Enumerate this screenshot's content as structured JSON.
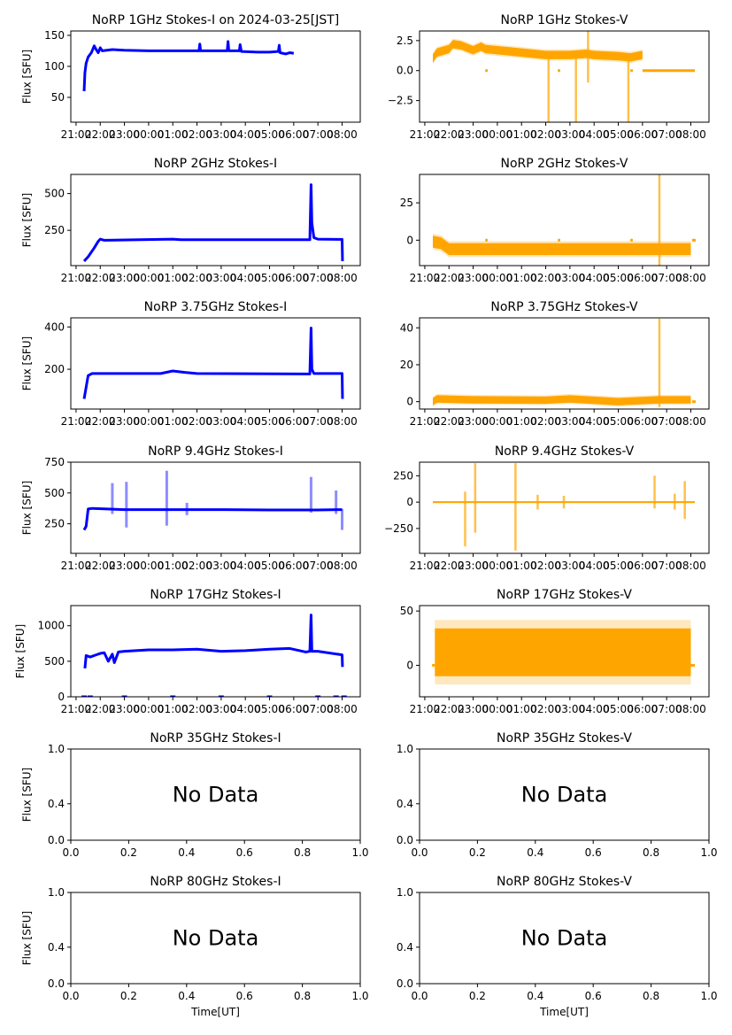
{
  "chart_data": {
    "type": "multi-panel",
    "colors": {
      "stokes_i": "#0000ff",
      "stokes_v": "#ffa500",
      "axes": "#000000"
    },
    "time_ticks": [
      "21:00",
      "22:00",
      "23:00",
      "00:00",
      "01:00",
      "02:00",
      "03:00",
      "04:00",
      "05:00",
      "06:00",
      "07:00",
      "08:00"
    ],
    "xlim": [
      "20:47",
      "08:45"
    ],
    "unit_ticks": [
      "0.0",
      "0.2",
      "0.4",
      "0.6",
      "0.8",
      "1.0"
    ],
    "panels": [
      {
        "title": "NoRP 1GHz Stokes-I on 2024-03-25[JST]",
        "ylabel": "Flux [SFU]",
        "kind": "I",
        "ylim": [
          10,
          157
        ],
        "yticks": [
          50,
          100,
          150
        ],
        "series": [
          [
            "21:20",
            60
          ],
          [
            "21:22",
            90
          ],
          [
            "21:25",
            105
          ],
          [
            "21:30",
            115
          ],
          [
            "21:38",
            122
          ],
          [
            "21:45",
            133
          ],
          [
            "21:50",
            127
          ],
          [
            "21:55",
            122
          ],
          [
            "22:00",
            130
          ],
          [
            "22:05",
            125
          ],
          [
            "22:30",
            127
          ],
          [
            "23:00",
            126
          ],
          [
            "00:00",
            125
          ],
          [
            "01:00",
            125
          ],
          [
            "02:05",
            125
          ],
          [
            "02:07",
            136
          ],
          [
            "02:09",
            125
          ],
          [
            "03:15",
            125
          ],
          [
            "03:17",
            140
          ],
          [
            "03:19",
            125
          ],
          [
            "03:45",
            125
          ],
          [
            "03:47",
            135
          ],
          [
            "03:50",
            124
          ],
          [
            "04:30",
            123
          ],
          [
            "05:00",
            123
          ],
          [
            "05:22",
            124
          ],
          [
            "05:24",
            134
          ],
          [
            "05:26",
            122
          ],
          [
            "05:40",
            120
          ],
          [
            "05:50",
            122
          ],
          [
            "06:00",
            121
          ]
        ]
      },
      {
        "title": "NoRP 1GHz Stokes-V",
        "kind": "V",
        "ylim": [
          -4.3,
          3.3
        ],
        "yticks": [
          -2.5,
          0.0,
          2.5
        ],
        "ytick_labels": [
          "−2.5",
          "0.0",
          "2.5"
        ],
        "spread": 0.35,
        "series": [
          [
            "21:20",
            1.0
          ],
          [
            "21:30",
            1.5
          ],
          [
            "22:00",
            1.8
          ],
          [
            "22:10",
            2.2
          ],
          [
            "22:30",
            2.1
          ],
          [
            "23:00",
            1.7
          ],
          [
            "23:20",
            2.0
          ],
          [
            "23:30",
            1.8
          ],
          [
            "00:00",
            1.7
          ],
          [
            "00:30",
            1.6
          ],
          [
            "01:00",
            1.5
          ],
          [
            "01:30",
            1.4
          ],
          [
            "02:00",
            1.3
          ],
          [
            "03:00",
            1.3
          ],
          [
            "03:40",
            1.4
          ],
          [
            "04:00",
            1.3
          ],
          [
            "05:00",
            1.2
          ],
          [
            "05:30",
            1.1
          ],
          [
            "06:00",
            1.3
          ]
        ],
        "zero_segments": [
          [
            "23:30",
            "23:36"
          ],
          [
            "02:30",
            "02:36"
          ],
          [
            "05:30",
            "05:36"
          ],
          [
            "06:00",
            "08:10"
          ]
        ],
        "spikes": [
          [
            "02:07",
            -4.3,
            1.0
          ],
          [
            "03:15",
            -4.3,
            1.0
          ],
          [
            "03:45",
            -1.0,
            3.3
          ],
          [
            "05:25",
            -4.3,
            1.0
          ]
        ]
      },
      {
        "title": "NoRP 2GHz Stokes-I",
        "ylabel": "Flux [SFU]",
        "kind": "I",
        "ylim": [
          10,
          630
        ],
        "yticks": [
          250,
          500
        ],
        "series": [
          [
            "21:20",
            40
          ],
          [
            "21:30",
            70
          ],
          [
            "21:45",
            130
          ],
          [
            "21:55",
            175
          ],
          [
            "22:00",
            190
          ],
          [
            "22:10",
            182
          ],
          [
            "01:00",
            190
          ],
          [
            "01:20",
            186
          ],
          [
            "06:40",
            186
          ],
          [
            "06:43",
            560
          ],
          [
            "06:45",
            300
          ],
          [
            "06:50",
            200
          ],
          [
            "07:00",
            190
          ],
          [
            "08:00",
            188
          ],
          [
            "08:01",
            40
          ]
        ]
      },
      {
        "title": "NoRP 2GHz Stokes-V",
        "kind": "V",
        "ylim": [
          -17,
          44
        ],
        "yticks": [
          0,
          25
        ],
        "spread": 4,
        "series": [
          [
            "21:20",
            -1
          ],
          [
            "21:40",
            -2
          ],
          [
            "22:00",
            -6
          ],
          [
            "06:40",
            -6
          ],
          [
            "08:00",
            -6
          ]
        ],
        "zero_segments": [
          [
            "23:30",
            "23:36"
          ],
          [
            "02:30",
            "02:36"
          ],
          [
            "05:30",
            "05:36"
          ],
          [
            "08:03",
            "08:12"
          ]
        ],
        "spikes": [
          [
            "06:42",
            -17,
            44
          ]
        ]
      },
      {
        "title": "NoRP 3.75GHz Stokes-I",
        "ylabel": "Flux [SFU]",
        "kind": "I",
        "ylim": [
          12,
          443
        ],
        "yticks": [
          200,
          400
        ],
        "series": [
          [
            "21:20",
            60
          ],
          [
            "21:30",
            170
          ],
          [
            "21:40",
            180
          ],
          [
            "00:30",
            180
          ],
          [
            "01:00",
            192
          ],
          [
            "01:30",
            185
          ],
          [
            "02:00",
            180
          ],
          [
            "06:40",
            178
          ],
          [
            "06:43",
            395
          ],
          [
            "06:45",
            200
          ],
          [
            "06:50",
            180
          ],
          [
            "08:00",
            180
          ],
          [
            "08:01",
            60
          ]
        ]
      },
      {
        "title": "NoRP 3.75GHz Stokes-V",
        "kind": "V",
        "ylim": [
          -4,
          45.4
        ],
        "yticks": [
          0,
          20,
          40
        ],
        "spread": 2,
        "series": [
          [
            "21:20",
            0
          ],
          [
            "21:30",
            1.5
          ],
          [
            "23:00",
            1
          ],
          [
            "02:00",
            0.8
          ],
          [
            "03:00",
            1.5
          ],
          [
            "05:00",
            0
          ],
          [
            "06:40",
            1
          ],
          [
            "08:00",
            1
          ]
        ],
        "zero_segments": [
          [
            "08:03",
            "08:12"
          ]
        ],
        "spikes": [
          [
            "06:42",
            -3,
            45
          ]
        ]
      },
      {
        "title": "NoRP 9.4GHz Stokes-I",
        "ylabel": "Flux [SFU]",
        "kind": "I",
        "ylim": [
          10,
          750
        ],
        "yticks": [
          250,
          500,
          750
        ],
        "series": [
          [
            "21:20",
            200
          ],
          [
            "21:25",
            230
          ],
          [
            "21:30",
            370
          ],
          [
            "21:40",
            375
          ],
          [
            "23:00",
            365
          ],
          [
            "01:00",
            365
          ],
          [
            "03:00",
            365
          ],
          [
            "05:00",
            362
          ],
          [
            "07:00",
            362
          ],
          [
            "08:00",
            365
          ]
        ],
        "spikes": [
          [
            "22:30",
            330,
            580
          ],
          [
            "23:05",
            220,
            590
          ],
          [
            "00:45",
            235,
            680
          ],
          [
            "01:35",
            320,
            420
          ],
          [
            "06:43",
            340,
            630
          ],
          [
            "07:45",
            330,
            520
          ],
          [
            "08:00",
            200,
            370
          ]
        ]
      },
      {
        "title": "NoRP 9.4GHz Stokes-V",
        "kind": "V",
        "ylim": [
          -486,
          379
        ],
        "yticks": [
          -250,
          0,
          250
        ],
        "ytick_labels": [
          "−250",
          "0",
          "250"
        ],
        "spread": 8,
        "series": [
          [
            "21:20",
            0
          ],
          [
            "08:10",
            0
          ]
        ],
        "spikes": [
          [
            "22:40",
            -420,
            100
          ],
          [
            "23:05",
            -290,
            370
          ],
          [
            "00:45",
            -460,
            370
          ],
          [
            "01:40",
            -70,
            70
          ],
          [
            "02:45",
            -60,
            60
          ],
          [
            "06:30",
            -60,
            250
          ],
          [
            "07:20",
            -70,
            80
          ],
          [
            "07:45",
            -160,
            200
          ]
        ]
      },
      {
        "title": "NoRP 17GHz Stokes-I",
        "ylabel": "Flux [SFU]",
        "kind": "I",
        "ylim": [
          0,
          1283
        ],
        "yticks": [
          0,
          500,
          1000
        ],
        "series": [
          [
            "21:22",
            400
          ],
          [
            "21:25",
            580
          ],
          [
            "21:35",
            560
          ],
          [
            "21:50",
            590
          ],
          [
            "22:00",
            610
          ],
          [
            "22:10",
            620
          ],
          [
            "22:20",
            500
          ],
          [
            "22:30",
            600
          ],
          [
            "22:35",
            480
          ],
          [
            "22:45",
            630
          ],
          [
            "23:00",
            640
          ],
          [
            "00:00",
            660
          ],
          [
            "01:00",
            660
          ],
          [
            "02:00",
            670
          ],
          [
            "03:00",
            640
          ],
          [
            "04:00",
            650
          ],
          [
            "05:00",
            670
          ],
          [
            "05:50",
            680
          ],
          [
            "06:30",
            630
          ],
          [
            "06:40",
            640
          ],
          [
            "06:43",
            1150
          ],
          [
            "06:45",
            640
          ],
          [
            "07:00",
            640
          ],
          [
            "08:00",
            590
          ],
          [
            "08:01",
            420
          ]
        ],
        "zero_markers": [
          "21:20",
          "21:35",
          "23:00",
          "01:00",
          "03:00",
          "05:00",
          "07:00",
          "07:45",
          "08:05"
        ]
      },
      {
        "title": "NoRP 17GHz Stokes-V",
        "kind": "V",
        "ylim": [
          -29,
          55
        ],
        "yticks": [
          0,
          50
        ],
        "spread": 22,
        "series": [
          [
            "21:25",
            12
          ],
          [
            "08:00",
            12
          ]
        ],
        "zero_segments": [
          [
            "21:18",
            "21:25"
          ],
          [
            "08:00",
            "08:10"
          ]
        ]
      },
      {
        "title": "NoRP 35GHz Stokes-I",
        "ylabel": "Flux [SFU]",
        "kind": "empty",
        "annotation": "No Data"
      },
      {
        "title": "NoRP 35GHz Stokes-V",
        "kind": "empty",
        "annotation": "No Data"
      },
      {
        "title": "NoRP 80GHz Stokes-I",
        "ylabel": "Flux [SFU]",
        "kind": "empty",
        "annotation": "No Data",
        "xlabel": "Time[UT]"
      },
      {
        "title": "NoRP 80GHz Stokes-V",
        "kind": "empty",
        "annotation": "No Data",
        "xlabel": "Time[UT]"
      }
    ]
  }
}
